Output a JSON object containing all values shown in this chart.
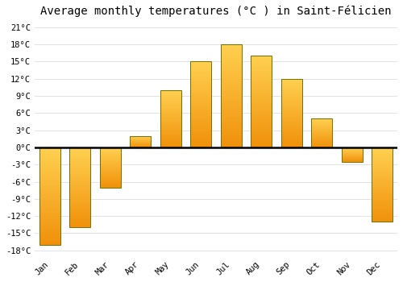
{
  "title": "Average monthly temperatures (°C ) in Saint-Félicien",
  "months": [
    "Jan",
    "Feb",
    "Mar",
    "Apr",
    "May",
    "Jun",
    "Jul",
    "Aug",
    "Sep",
    "Oct",
    "Nov",
    "Dec"
  ],
  "values": [
    -17,
    -14,
    -7,
    2,
    10,
    15,
    18,
    16,
    12,
    5,
    -2.5,
    -13
  ],
  "bar_color_light": "#FFD050",
  "bar_color_dark": "#F0900A",
  "bar_edge_color": "#707000",
  "background_color": "#FFFFFF",
  "grid_color": "#DDDDDD",
  "yticks": [
    -18,
    -15,
    -12,
    -9,
    -6,
    -3,
    0,
    3,
    6,
    9,
    12,
    15,
    18,
    21
  ],
  "ytick_labels": [
    "-18°C",
    "-15°C",
    "-12°C",
    "-9°C",
    "-6°C",
    "-3°C",
    "0°C",
    "3°C",
    "6°C",
    "9°C",
    "12°C",
    "15°C",
    "18°C",
    "21°C"
  ],
  "ylim": [
    -19,
    22
  ],
  "title_fontsize": 10,
  "tick_fontsize": 7.5,
  "font_family": "monospace",
  "bar_width": 0.7,
  "gradient_steps": 100
}
